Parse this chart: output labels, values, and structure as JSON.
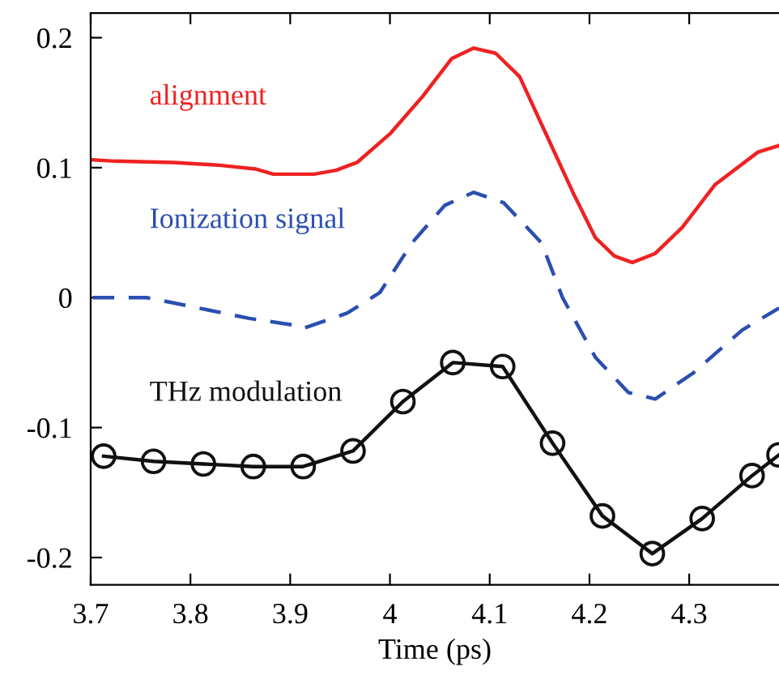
{
  "chart_data": {
    "type": "line",
    "xlabel": "Time (ps)",
    "xlim": [
      3.7,
      4.39
    ],
    "xticks": [
      3.7,
      3.8,
      3.9,
      4,
      4.1,
      4.2,
      4.3
    ],
    "ylim": [
      -0.221,
      0.219
    ],
    "yticks": [
      -0.2,
      -0.1,
      0,
      0.1,
      0.2
    ],
    "grid": false,
    "legend": false,
    "series": [
      {
        "name": "alignment",
        "color": "#ee2222",
        "line_style": "solid",
        "marker": "none",
        "x": [
          3.702,
          3.724,
          3.783,
          3.827,
          3.865,
          3.883,
          3.924,
          3.946,
          3.967,
          4.0,
          4.033,
          4.062,
          4.084,
          4.106,
          4.13,
          4.157,
          4.184,
          4.206,
          4.225,
          4.243,
          4.266,
          4.293,
          4.326,
          4.369,
          4.39
        ],
        "values": [
          0.106,
          0.105,
          0.104,
          0.102,
          0.099,
          0.095,
          0.095,
          0.098,
          0.104,
          0.126,
          0.155,
          0.184,
          0.192,
          0.188,
          0.17,
          0.125,
          0.08,
          0.046,
          0.032,
          0.027,
          0.034,
          0.054,
          0.087,
          0.112,
          0.117
        ]
      },
      {
        "name": "Ionization signal",
        "color": "#2a4fb0",
        "line_style": "dashed",
        "marker": "none",
        "x": [
          3.702,
          3.756,
          3.789,
          3.859,
          3.902,
          3.912,
          3.957,
          3.99,
          4.022,
          4.055,
          4.084,
          4.114,
          4.152,
          4.173,
          4.206,
          4.239,
          4.266,
          4.304,
          4.353,
          4.39
        ],
        "values": [
          0.0,
          0.0,
          -0.005,
          -0.016,
          -0.021,
          -0.024,
          -0.012,
          0.004,
          0.042,
          0.071,
          0.081,
          0.073,
          0.042,
          0.0,
          -0.046,
          -0.073,
          -0.078,
          -0.058,
          -0.025,
          -0.008
        ]
      },
      {
        "name": "THz modulation",
        "color": "#111111",
        "line_style": "solid",
        "marker": "circle",
        "x": [
          3.713,
          3.763,
          3.813,
          3.863,
          3.913,
          3.963,
          4.013,
          4.063,
          4.113,
          4.163,
          4.213,
          4.263,
          4.313,
          4.363,
          4.39
        ],
        "values": [
          -0.122,
          -0.126,
          -0.128,
          -0.13,
          -0.13,
          -0.118,
          -0.08,
          -0.05,
          -0.053,
          -0.112,
          -0.168,
          -0.197,
          -0.17,
          -0.137,
          -0.121
        ]
      }
    ]
  }
}
